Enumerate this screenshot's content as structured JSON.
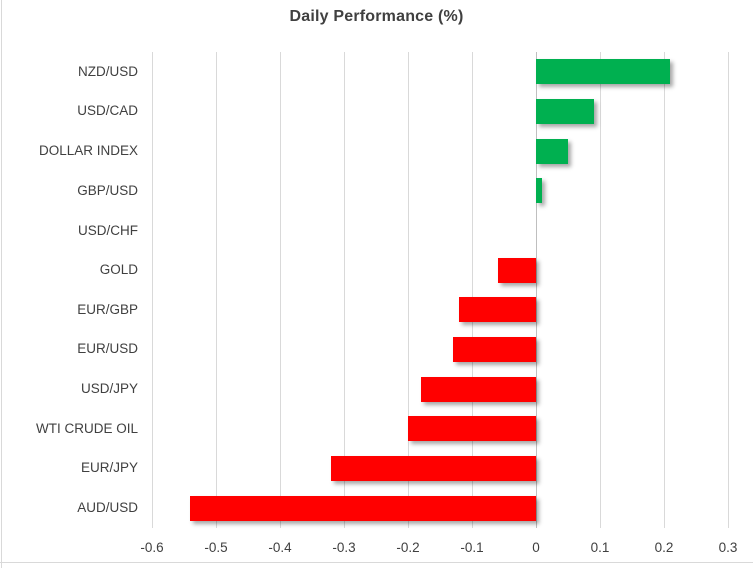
{
  "chart_data": {
    "type": "bar",
    "orientation": "horizontal",
    "title": "Daily Performance (%)",
    "categories": [
      "NZD/USD",
      "USD/CAD",
      "DOLLAR INDEX",
      "GBP/USD",
      "USD/CHF",
      "GOLD",
      "EUR/GBP",
      "EUR/USD",
      "USD/JPY",
      "WTI CRUDE OIL",
      "EUR/JPY",
      "AUD/USD"
    ],
    "values": [
      0.21,
      0.09,
      0.05,
      0.01,
      0.0,
      -0.06,
      -0.12,
      -0.13,
      -0.18,
      -0.2,
      -0.32,
      -0.54
    ],
    "xlabel": "",
    "ylabel": "",
    "xlim": [
      -0.6,
      0.3
    ],
    "xticks": [
      -0.6,
      -0.5,
      -0.4,
      -0.3,
      -0.2,
      -0.1,
      0,
      0.1,
      0.2,
      0.3
    ],
    "xtick_labels": [
      "-0.6",
      "-0.5",
      "-0.4",
      "-0.3",
      "-0.2",
      "-0.1",
      "0",
      "0.1",
      "0.2",
      "0.3"
    ],
    "grid": true,
    "legend": "none",
    "colors": {
      "positive": "#00B050",
      "negative": "#FF0000",
      "gridline": "#D9D9D9",
      "zero_line": "#BFBFBF",
      "text": "#404040",
      "title": "#404040",
      "chart_border": "#D9D9D9"
    }
  }
}
